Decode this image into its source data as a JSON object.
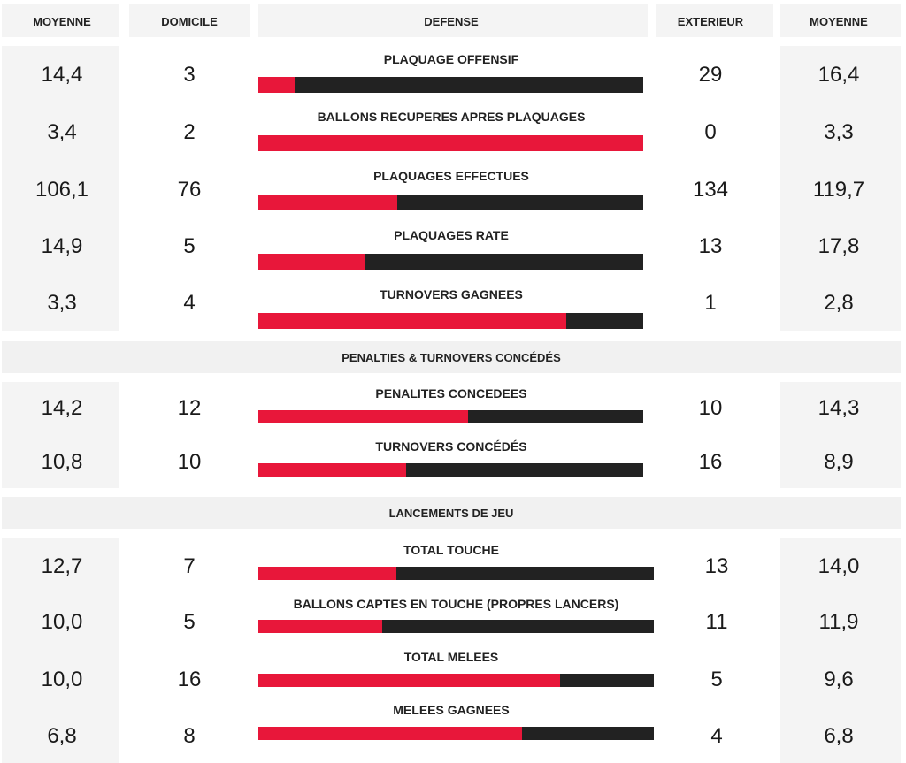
{
  "header": {
    "left_avg": "MOYENNE",
    "home": "DOMICILE",
    "title": "DEFENSE",
    "away": "EXTERIEUR",
    "right_avg": "MOYENNE"
  },
  "colors": {
    "home_bar": "#e8173a",
    "away_bar": "#222222"
  },
  "sections": [
    {
      "title": "",
      "rows": [
        {
          "label": "PLAQUAGE OFFENSIF",
          "home_avg": "14,4",
          "home": "3",
          "away": "29",
          "away_avg": "16,4",
          "home_share": 0.094
        },
        {
          "label": "BALLONS RECUPERES APRES PLAQUAGES",
          "home_avg": "3,4",
          "home": "2",
          "away": "0",
          "away_avg": "3,3",
          "home_share": 1.0
        },
        {
          "label": "PLAQUAGES EFFECTUES",
          "home_avg": "106,1",
          "home": "76",
          "away": "134",
          "away_avg": "119,7",
          "home_share": 0.362
        },
        {
          "label": "PLAQUAGES RATE",
          "home_avg": "14,9",
          "home": "5",
          "away": "13",
          "away_avg": "17,8",
          "home_share": 0.278
        },
        {
          "label": "TURNOVERS GAGNEES",
          "home_avg": "3,3",
          "home": "4",
          "away": "1",
          "away_avg": "2,8",
          "home_share": 0.8
        }
      ]
    },
    {
      "title": "PENALTIES & TURNOVERS CONCÉDÉS",
      "rows": [
        {
          "label": "PENALITES CONCEDEES",
          "home_avg": "14,2",
          "home": "12",
          "away": "10",
          "away_avg": "14,3",
          "home_share": 0.545
        },
        {
          "label": "TURNOVERS CONCÉDÉS",
          "home_avg": "10,8",
          "home": "10",
          "away": "16",
          "away_avg": "8,9",
          "home_share": 0.385
        }
      ]
    },
    {
      "title": "LANCEMENTS DE JEU",
      "rows": [
        {
          "label": "TOTAL TOUCHE",
          "home_avg": "12,7",
          "home": "7",
          "away": "13",
          "away_avg": "14,0",
          "home_share": 0.35
        },
        {
          "label": "BALLONS CAPTES EN TOUCHE (PROPRES LANCERS)",
          "home_avg": "10,0",
          "home": "5",
          "away": "11",
          "away_avg": "11,9",
          "home_share": 0.313
        },
        {
          "label": "TOTAL MELEES",
          "home_avg": "10,0",
          "home": "16",
          "away": "5",
          "away_avg": "9,6",
          "home_share": 0.762
        },
        {
          "label": "MELEES GAGNEES",
          "home_avg": "6,8",
          "home": "8",
          "away": "4",
          "away_avg": "6,8",
          "home_share": 0.667
        }
      ]
    }
  ]
}
